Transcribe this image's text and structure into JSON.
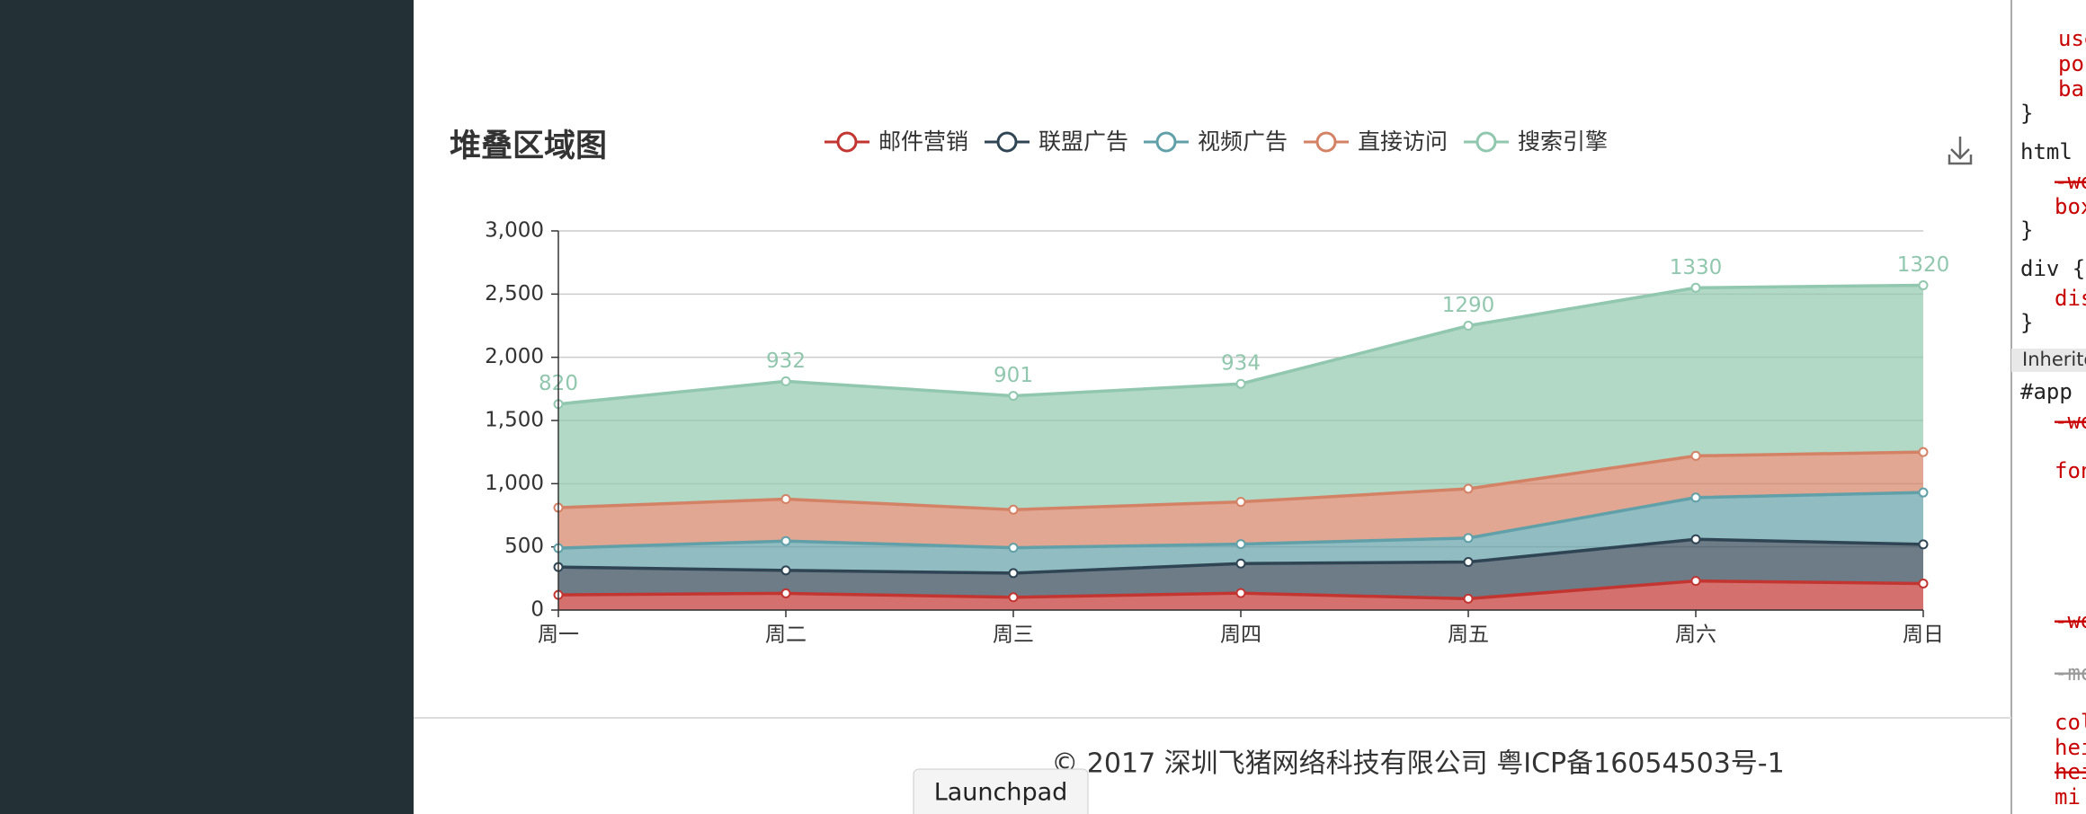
{
  "chart_data": {
    "type": "stacked-area",
    "title": "堆叠区域图",
    "categories": [
      "周一",
      "周二",
      "周三",
      "周四",
      "周五",
      "周六",
      "周日"
    ],
    "series": [
      {
        "name": "邮件营销",
        "color": "#c23531",
        "values": [
          120,
          132,
          101,
          134,
          90,
          230,
          210
        ]
      },
      {
        "name": "联盟广告",
        "color": "#2f4554",
        "values": [
          220,
          182,
          191,
          234,
          290,
          330,
          310
        ]
      },
      {
        "name": "视频广告",
        "color": "#61a0a8",
        "values": [
          150,
          232,
          201,
          154,
          190,
          330,
          410
        ]
      },
      {
        "name": "直接访问",
        "color": "#d48265",
        "values": [
          320,
          332,
          301,
          334,
          390,
          330,
          320
        ]
      },
      {
        "name": "搜索引擎",
        "color": "#91c7ae",
        "values": [
          820,
          932,
          901,
          934,
          1290,
          1330,
          1320
        ],
        "show_labels": true
      }
    ],
    "ylim": [
      0,
      3000
    ],
    "yticks": [
      0,
      500,
      {
        "value": 1000,
        "label": "1,000"
      },
      {
        "value": 1500,
        "label": "1,500"
      },
      {
        "value": 2000,
        "label": "2,000"
      },
      {
        "value": 2500,
        "label": "2,500"
      },
      {
        "value": 3000,
        "label": "3,000"
      }
    ],
    "grid": true
  },
  "footer": "© 2017 深圳飞猪网络科技有限公司 粤ICP备16054503号-1",
  "dock_tooltip": "Launchpad",
  "devtools": [
    "use",
    "pos",
    "bac",
    "}",
    "html",
    "-we",
    "box",
    "}",
    "div {",
    "dis",
    "}",
    "Inherite",
    "#app",
    "-we",
    "fon",
    "-we",
    "-mo",
    "col",
    "hei",
    "hei",
    "mi"
  ]
}
